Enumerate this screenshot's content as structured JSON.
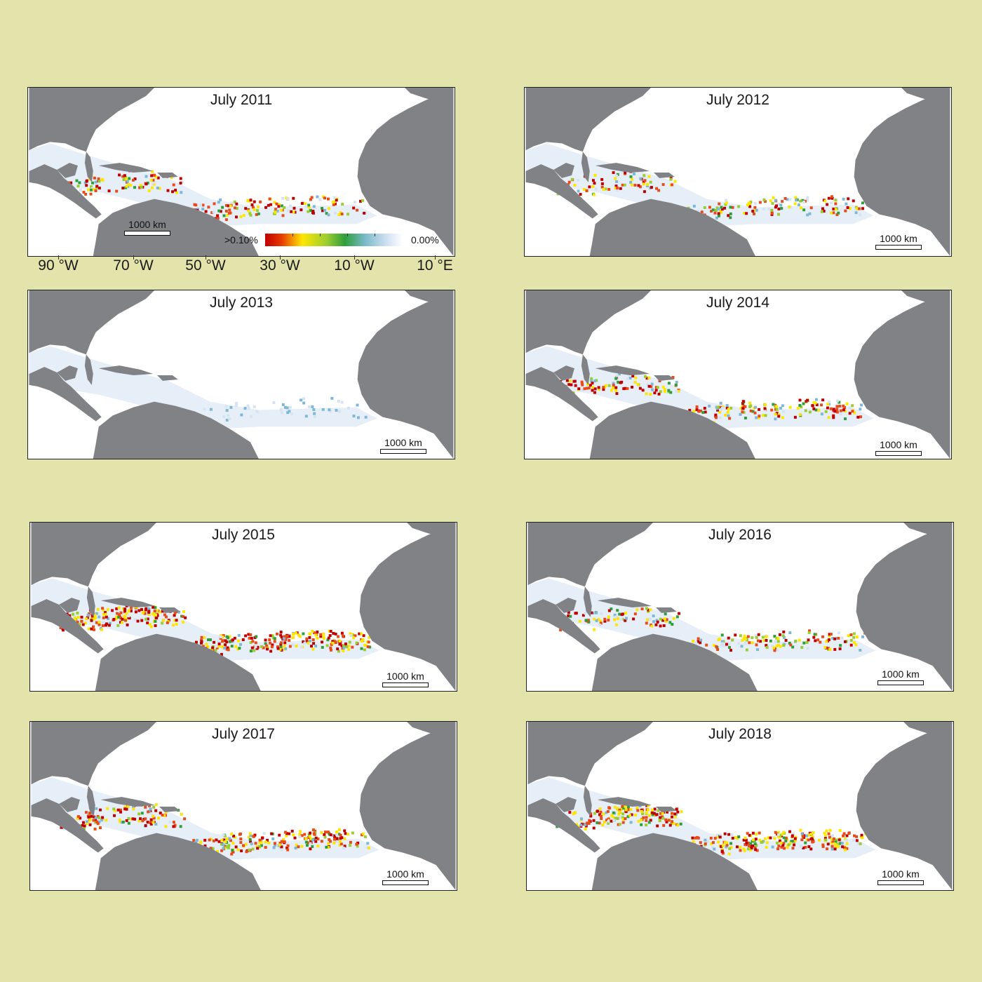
{
  "panels": [
    {
      "title": "July 2011",
      "scale_label": "1000 km",
      "level": 0.55
    },
    {
      "title": "July 2012",
      "scale_label": "1000 km",
      "level": 0.45
    },
    {
      "title": "July 2013",
      "scale_label": "1000 km",
      "level": 0.05
    },
    {
      "title": "July 2014",
      "scale_label": "1000 km",
      "level": 0.6
    },
    {
      "title": "July 2015",
      "scale_label": "1000 km",
      "level": 1.0
    },
    {
      "title": "July 2016",
      "scale_label": "1000 km",
      "level": 0.5
    },
    {
      "title": "July 2017",
      "scale_label": "1000 km",
      "level": 0.85
    },
    {
      "title": "July 2018",
      "scale_label": "1000 km",
      "level": 1.0
    }
  ],
  "legend": {
    "max_label": ">0.10%",
    "min_label": "0.00%"
  },
  "longitude_ticks": [
    "90 °W",
    "70 °W",
    "50 °W",
    "30 °W",
    "10 °W",
    "10 °E"
  ],
  "colors": {
    "background": "#e3e4ac",
    "land": "#808285",
    "ocean": "#ffffff",
    "scale": [
      "#c00000",
      "#ffe600",
      "#2e9e3a",
      "#cfdff2",
      "#ffffff"
    ]
  }
}
